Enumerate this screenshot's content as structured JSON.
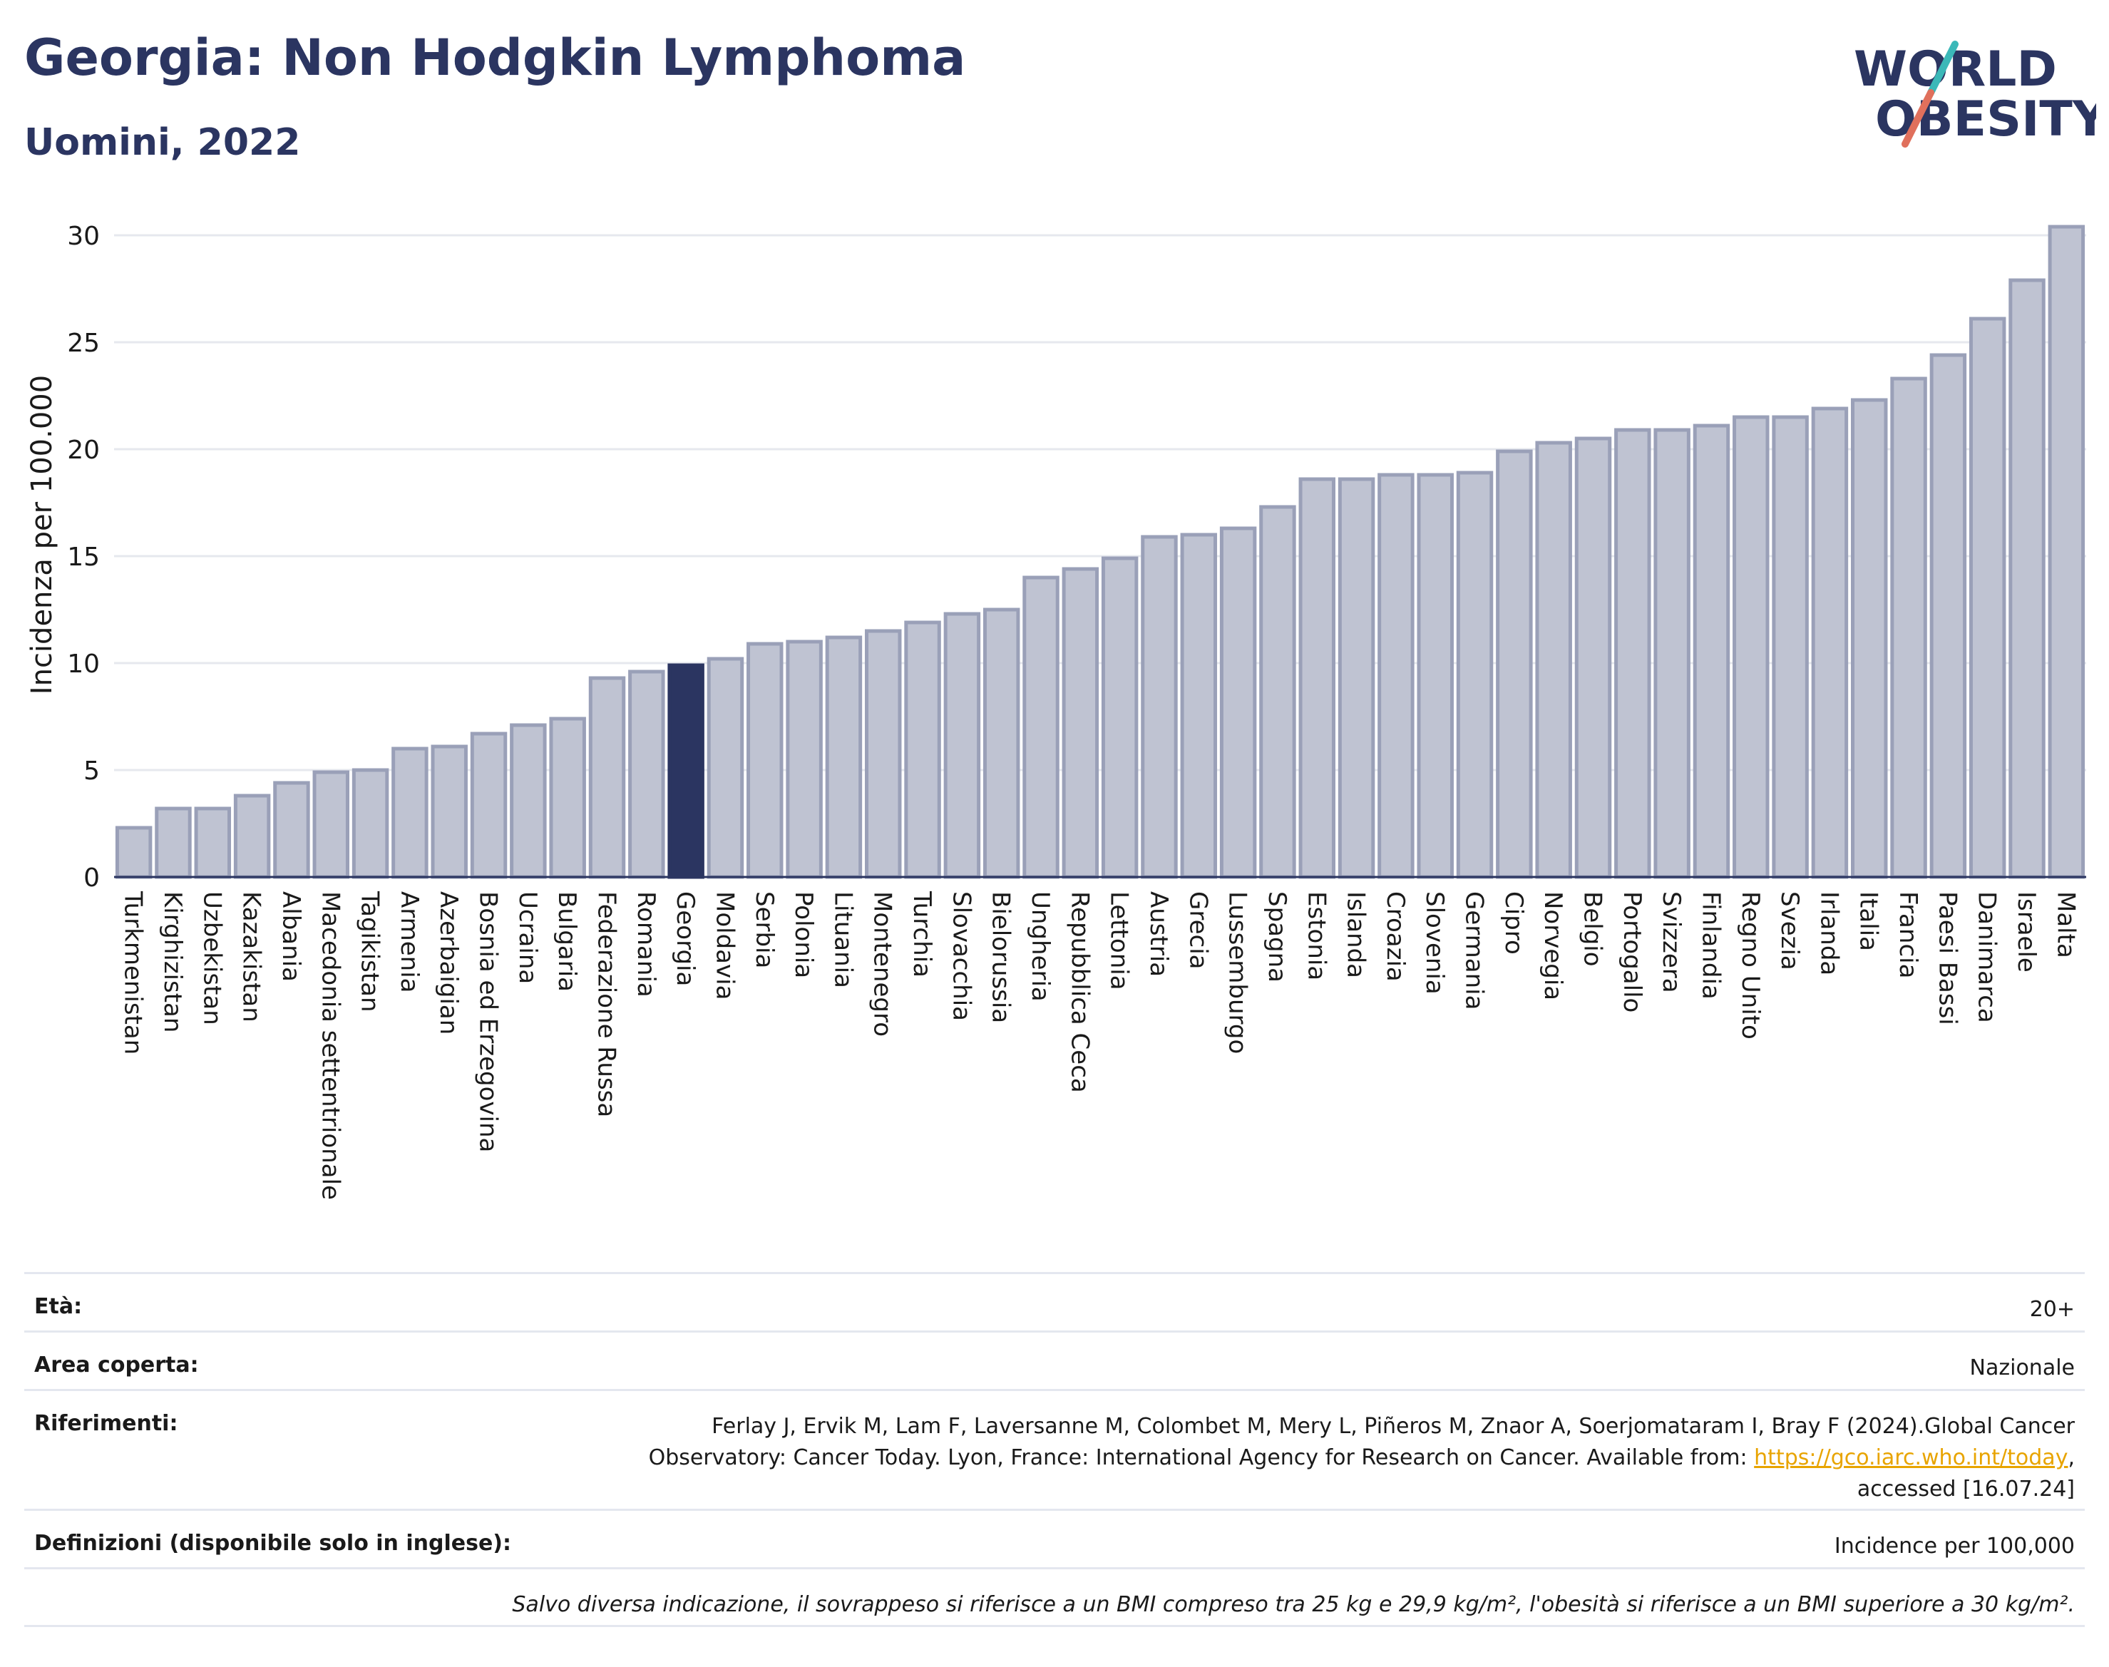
{
  "header": {
    "title": "Georgia: Non Hodgkin Lymphoma",
    "subtitle": "Uomini, 2022",
    "logo_line1": "WORLD",
    "logo_line2": "OBESITY"
  },
  "chart_data": {
    "type": "bar",
    "title": "Georgia: Non Hodgkin Lymphoma",
    "subtitle": "Uomini, 2022",
    "ylabel": "Incidenza per 100.000",
    "xlabel": "",
    "ylim": [
      0,
      32
    ],
    "yticks": [
      0,
      5,
      10,
      15,
      20,
      25,
      30
    ],
    "grid": true,
    "highlight": "Georgia",
    "colors": {
      "bar": "#bfc3d2",
      "bar_border": "#9aa0b8",
      "highlight": "#2b3561"
    },
    "categories": [
      "Turkmenistan",
      "Kirghizistan",
      "Uzbekistan",
      "Kazakistan",
      "Albania",
      "Macedonia settentrionale",
      "Tagikistan",
      "Armenia",
      "Azerbaigian",
      "Bosnia ed Erzegovina",
      "Ucraina",
      "Bulgaria",
      "Federazione Russa",
      "Romania",
      "Georgia",
      "Moldavia",
      "Serbia",
      "Polonia",
      "Lituania",
      "Montenegro",
      "Turchia",
      "Slovacchia",
      "Bielorussia",
      "Ungheria",
      "Repubblica Ceca",
      "Lettonia",
      "Austria",
      "Grecia",
      "Lussemburgo",
      "Spagna",
      "Estonia",
      "Islanda",
      "Croazia",
      "Slovenia",
      "Germania",
      "Cipro",
      "Norvegia",
      "Belgio",
      "Portogallo",
      "Svizzera",
      "Finlandia",
      "Regno Unito",
      "Svezia",
      "Irlanda",
      "Italia",
      "Francia",
      "Paesi Bassi",
      "Danimarca",
      "Israele",
      "Malta"
    ],
    "values": [
      2.3,
      3.2,
      3.2,
      3.8,
      4.4,
      4.9,
      5.0,
      6.0,
      6.1,
      6.7,
      7.1,
      7.4,
      9.3,
      9.6,
      9.9,
      10.2,
      10.9,
      11.0,
      11.2,
      11.5,
      11.9,
      12.3,
      12.5,
      14.0,
      14.4,
      14.9,
      15.9,
      16.0,
      16.3,
      17.3,
      18.6,
      18.6,
      18.8,
      18.8,
      18.9,
      19.9,
      20.3,
      20.5,
      20.9,
      20.9,
      21.1,
      21.5,
      21.5,
      21.9,
      22.3,
      23.3,
      24.4,
      26.1,
      27.9,
      30.4
    ]
  },
  "meta": {
    "age_label": "Età:",
    "age_value": "20+",
    "area_label": "Area coperta:",
    "area_value": "Nazionale",
    "refs_label": "Riferimenti:",
    "refs_line1": "Ferlay J, Ervik M, Lam F, Laversanne M, Colombet M, Mery L, Piñeros M, Znaor A, Soerjomataram I, Bray F (2024).Global Cancer",
    "refs_line2_prefix": "Observatory: Cancer Today. Lyon, France: International Agency for Research on Cancer. Available from: ",
    "refs_link": "https://gco.iarc.who.int/today",
    "refs_line2_suffix": ",",
    "refs_line3": "accessed [16.07.24]",
    "defs_label": "Definizioni (disponibile solo in inglese):",
    "defs_value": "Incidence per 100,000",
    "note": "Salvo diversa indicazione, il sovrappeso si riferisce a un BMI compreso tra 25 kg e 29,9 kg/m², l'obesità si riferisce a un BMI superiore a 30 kg/m²."
  }
}
